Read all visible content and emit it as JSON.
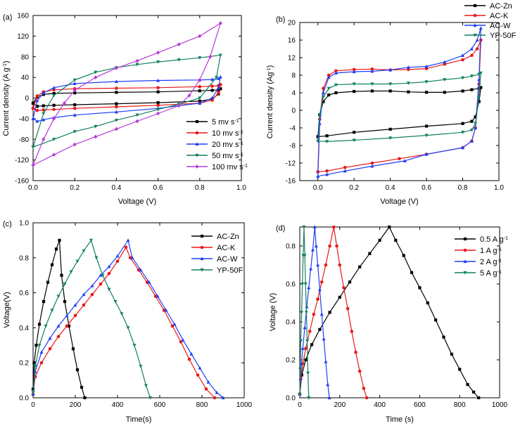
{
  "chart_data": [
    {
      "type": "line",
      "panel": "(a)",
      "xlabel": "Voltage (V)",
      "ylabel": "Current density (A g⁻¹)",
      "xlim": [
        0.0,
        1.0
      ],
      "ylim": [
        -160,
        160
      ],
      "xticks": [
        0.0,
        0.2,
        0.4,
        0.6,
        0.8,
        1.0
      ],
      "xtick_labels": [
        "0.0",
        "0.2",
        "0.4",
        "0.6",
        "0.8",
        "1.0"
      ],
      "yticks": [
        -160,
        -120,
        -80,
        -40,
        0,
        40,
        80,
        120,
        160
      ],
      "ytick_labels": [
        "-160",
        "-120",
        "-80",
        "-40",
        "0",
        "40",
        "80",
        "120",
        "160"
      ],
      "grid": false,
      "legend_position": "bottom-right",
      "series": [
        {
          "name": "5 mv s⁻¹",
          "color": "#000000",
          "marker": "square",
          "x": [
            0.0,
            0.02,
            0.05,
            0.1,
            0.2,
            0.4,
            0.6,
            0.8,
            0.86,
            0.89,
            0.9,
            0.89,
            0.86,
            0.8,
            0.6,
            0.4,
            0.2,
            0.1,
            0.05,
            0.02,
            0.0
          ],
          "y": [
            -10,
            2,
            7,
            9,
            10,
            11,
            12,
            14,
            15,
            16,
            18,
            8,
            -2,
            -6,
            -9,
            -11,
            -13,
            -14,
            -15,
            -16,
            -10
          ]
        },
        {
          "name": "10 mv s⁻¹",
          "color": "#e8191b",
          "marker": "circle",
          "x": [
            0.0,
            0.02,
            0.05,
            0.1,
            0.2,
            0.4,
            0.6,
            0.8,
            0.86,
            0.89,
            0.9,
            0.89,
            0.86,
            0.8,
            0.6,
            0.4,
            0.2,
            0.1,
            0.05,
            0.02,
            0.0
          ],
          "y": [
            -20,
            4,
            12,
            16,
            18,
            19,
            20,
            22,
            23,
            24,
            26,
            10,
            -4,
            -10,
            -14,
            -17,
            -20,
            -22,
            -23,
            -24,
            -20
          ]
        },
        {
          "name": "20 mv s⁻¹",
          "color": "#1f3ef5",
          "marker": "triangle-up",
          "x": [
            0.0,
            0.02,
            0.05,
            0.1,
            0.2,
            0.4,
            0.6,
            0.8,
            0.86,
            0.89,
            0.9,
            0.89,
            0.86,
            0.8,
            0.6,
            0.4,
            0.2,
            0.1,
            0.05,
            0.02,
            0.0
          ],
          "y": [
            -40,
            -5,
            10,
            20,
            28,
            32,
            34,
            35,
            36,
            38,
            41,
            20,
            0,
            -10,
            -20,
            -27,
            -33,
            -38,
            -42,
            -45,
            -40
          ]
        },
        {
          "name": "50 mv s⁻¹",
          "color": "#128061",
          "marker": "triangle-down",
          "x": [
            0.0,
            0.05,
            0.1,
            0.2,
            0.3,
            0.4,
            0.5,
            0.6,
            0.7,
            0.8,
            0.9,
            0.88,
            0.8,
            0.7,
            0.6,
            0.5,
            0.4,
            0.3,
            0.2,
            0.1,
            0.0
          ],
          "y": [
            -95,
            -30,
            5,
            35,
            50,
            59,
            65,
            70,
            74,
            78,
            83,
            40,
            0,
            -12,
            -22,
            -33,
            -43,
            -55,
            -65,
            -80,
            -95
          ]
        },
        {
          "name": "100 mv s⁻¹",
          "color": "#b63ad8",
          "marker": "diamond",
          "x": [
            0.0,
            0.05,
            0.1,
            0.15,
            0.2,
            0.3,
            0.4,
            0.5,
            0.6,
            0.7,
            0.8,
            0.9,
            0.85,
            0.8,
            0.75,
            0.7,
            0.6,
            0.5,
            0.4,
            0.3,
            0.2,
            0.1,
            0.0
          ],
          "y": [
            -130,
            -80,
            -40,
            -10,
            15,
            40,
            58,
            72,
            88,
            104,
            120,
            145,
            80,
            35,
            5,
            -15,
            -30,
            -45,
            -60,
            -75,
            -90,
            -110,
            -130
          ]
        }
      ]
    },
    {
      "type": "line",
      "panel": "(b)",
      "xlabel": "Voltage (V)",
      "ylabel": "Current density (Ag⁻¹)",
      "xlim": [
        -0.1,
        1.0
      ],
      "ylim": [
        -16,
        20
      ],
      "xticks": [
        0.0,
        0.2,
        0.4,
        0.6,
        0.8,
        1.0
      ],
      "xtick_labels": [
        "0.0",
        "0.2",
        "0.4",
        "0.6",
        "0.8",
        "1.0"
      ],
      "yticks": [
        -16,
        -12,
        -8,
        -4,
        0,
        4,
        8,
        12,
        16,
        20
      ],
      "ytick_labels": [
        "-16",
        "-12",
        "-8",
        "-4",
        "0",
        "4",
        "8",
        "12",
        "16",
        "20"
      ],
      "grid": false,
      "legend_position": "top-right outside",
      "series": [
        {
          "name": "AC-Zn",
          "color": "#000000",
          "marker": "square",
          "x": [
            0.0,
            0.01,
            0.03,
            0.06,
            0.1,
            0.2,
            0.3,
            0.4,
            0.5,
            0.6,
            0.7,
            0.8,
            0.85,
            0.89,
            0.9,
            0.89,
            0.87,
            0.85,
            0.8,
            0.6,
            0.4,
            0.2,
            0.05,
            0.0
          ],
          "y": [
            -6,
            -1,
            2,
            3.5,
            4,
            4.3,
            4.4,
            4.4,
            4.2,
            4.1,
            4.1,
            4.4,
            4.7,
            5,
            5.2,
            2,
            -1.5,
            -2.5,
            -3,
            -3.6,
            -4.3,
            -5,
            -5.8,
            -6
          ]
        },
        {
          "name": "AC-K",
          "color": "#e8191b",
          "marker": "circle",
          "x": [
            0.0,
            0.01,
            0.03,
            0.06,
            0.1,
            0.2,
            0.3,
            0.4,
            0.5,
            0.6,
            0.7,
            0.8,
            0.85,
            0.88,
            0.9,
            0.89,
            0.87,
            0.85,
            0.8,
            0.6,
            0.45,
            0.3,
            0.15,
            0.05,
            0.0
          ],
          "y": [
            -14,
            -2,
            5,
            8,
            9,
            9.3,
            9.4,
            9.2,
            9.3,
            9.5,
            10.5,
            11.5,
            12.5,
            14,
            16,
            6,
            -4,
            -7,
            -8.5,
            -10,
            -11,
            -12,
            -13,
            -13.8,
            -14
          ]
        },
        {
          "name": "AC-W",
          "color": "#1f3ef5",
          "marker": "triangle-up",
          "x": [
            0.0,
            0.01,
            0.03,
            0.06,
            0.1,
            0.2,
            0.3,
            0.4,
            0.5,
            0.6,
            0.7,
            0.8,
            0.85,
            0.88,
            0.9,
            0.89,
            0.87,
            0.85,
            0.8,
            0.6,
            0.48,
            0.3,
            0.15,
            0.05,
            0.0
          ],
          "y": [
            -15,
            -3,
            4,
            7.5,
            8.5,
            8.8,
            8.9,
            9.2,
            9.8,
            10,
            11,
            12.5,
            14,
            16,
            18.7,
            7,
            -4,
            -7,
            -8.5,
            -10,
            -11.5,
            -12.7,
            -13.8,
            -14.6,
            -15
          ]
        },
        {
          "name": "YP-50F",
          "color": "#128061",
          "marker": "triangle-down",
          "x": [
            0.0,
            0.01,
            0.03,
            0.06,
            0.1,
            0.2,
            0.3,
            0.4,
            0.5,
            0.6,
            0.7,
            0.8,
            0.85,
            0.89,
            0.9,
            0.89,
            0.87,
            0.85,
            0.8,
            0.6,
            0.4,
            0.2,
            0.05,
            0.0
          ],
          "y": [
            -7,
            -1,
            3,
            5,
            5.8,
            6,
            6,
            6,
            6.2,
            6.5,
            7,
            7.4,
            7.8,
            8.2,
            8.5,
            3,
            -3,
            -4.5,
            -5,
            -5.7,
            -6.3,
            -6.8,
            -7.1,
            -7
          ]
        }
      ]
    },
    {
      "type": "line",
      "panel": "(c)",
      "xlabel": "Time(s)",
      "ylabel": "Voltage(V)",
      "xlim": [
        0,
        1000
      ],
      "ylim": [
        0.0,
        1.0
      ],
      "xticks": [
        0,
        200,
        400,
        600,
        800,
        1000
      ],
      "xtick_labels": [
        "0",
        "200",
        "400",
        "600",
        "800",
        "1000"
      ],
      "yticks": [
        0.0,
        0.2,
        0.4,
        0.6,
        0.8,
        1.0
      ],
      "ytick_labels": [
        "0.0",
        "0.2",
        "0.4",
        "0.6",
        "0.8",
        "1.0"
      ],
      "grid": false,
      "legend_position": "top-right",
      "series": [
        {
          "name": "AC-Zn",
          "color": "#000000",
          "marker": "square",
          "x": [
            0,
            5,
            15,
            30,
            50,
            70,
            90,
            110,
            125,
            135,
            150,
            170,
            190,
            210,
            230,
            245
          ],
          "y": [
            0.05,
            0.2,
            0.3,
            0.42,
            0.55,
            0.66,
            0.76,
            0.85,
            0.9,
            0.7,
            0.55,
            0.41,
            0.28,
            0.16,
            0.06,
            0.0
          ]
        },
        {
          "name": "AC-K",
          "color": "#e8191b",
          "marker": "circle",
          "x": [
            0,
            10,
            40,
            80,
            120,
            160,
            200,
            240,
            280,
            320,
            360,
            400,
            440,
            460,
            500,
            540,
            580,
            620,
            660,
            700,
            740,
            780,
            820,
            860
          ],
          "y": [
            0.02,
            0.12,
            0.2,
            0.28,
            0.35,
            0.41,
            0.47,
            0.53,
            0.59,
            0.65,
            0.71,
            0.78,
            0.86,
            0.8,
            0.73,
            0.66,
            0.58,
            0.5,
            0.41,
            0.32,
            0.22,
            0.13,
            0.05,
            0.0
          ]
        },
        {
          "name": "AC-W",
          "color": "#1f3ef5",
          "marker": "triangle-up",
          "x": [
            0,
            10,
            40,
            80,
            120,
            160,
            200,
            240,
            280,
            320,
            360,
            400,
            450,
            470,
            510,
            550,
            590,
            630,
            670,
            710,
            750,
            790,
            830,
            870,
            900
          ],
          "y": [
            0.02,
            0.15,
            0.26,
            0.34,
            0.41,
            0.47,
            0.53,
            0.59,
            0.64,
            0.7,
            0.75,
            0.81,
            0.9,
            0.8,
            0.73,
            0.66,
            0.58,
            0.5,
            0.42,
            0.33,
            0.25,
            0.17,
            0.09,
            0.03,
            0.0
          ]
        },
        {
          "name": "YP-50F",
          "color": "#128061",
          "marker": "triangle-down",
          "x": [
            0,
            10,
            30,
            60,
            90,
            120,
            150,
            180,
            210,
            240,
            275,
            300,
            330,
            360,
            390,
            420,
            450,
            480,
            510,
            535,
            555
          ],
          "y": [
            0.03,
            0.18,
            0.3,
            0.41,
            0.5,
            0.58,
            0.65,
            0.72,
            0.78,
            0.84,
            0.9,
            0.8,
            0.7,
            0.62,
            0.55,
            0.48,
            0.4,
            0.3,
            0.18,
            0.07,
            0.0
          ]
        }
      ]
    },
    {
      "type": "line",
      "panel": "(d)",
      "xlabel": "Time (s)",
      "ylabel": "Voltage (V)",
      "xlim": [
        0,
        1000
      ],
      "ylim": [
        0.0,
        0.9
      ],
      "xticks": [
        0,
        200,
        400,
        600,
        800,
        1000
      ],
      "xtick_labels": [
        "0",
        "200",
        "400",
        "600",
        "800",
        "1000"
      ],
      "yticks": [
        0.0,
        0.2,
        0.4,
        0.6,
        0.8
      ],
      "ytick_labels": [
        "0.0",
        "0.2",
        "0.4",
        "0.6",
        "0.8"
      ],
      "grid": false,
      "legend_position": "top-right",
      "series": [
        {
          "name": "0.5 A g⁻¹",
          "color": "#000000",
          "marker": "square",
          "x": [
            0,
            10,
            30,
            60,
            100,
            150,
            200,
            250,
            300,
            350,
            400,
            448,
            480,
            520,
            560,
            600,
            640,
            680,
            720,
            760,
            800,
            840,
            870,
            895
          ],
          "y": [
            0.02,
            0.12,
            0.2,
            0.28,
            0.36,
            0.45,
            0.53,
            0.61,
            0.69,
            0.76,
            0.83,
            0.9,
            0.83,
            0.75,
            0.66,
            0.58,
            0.5,
            0.41,
            0.32,
            0.23,
            0.15,
            0.07,
            0.03,
            0.0
          ]
        },
        {
          "name": "1 A g⁻¹",
          "color": "#e8191b",
          "marker": "circle",
          "x": [
            0,
            5,
            15,
            30,
            50,
            70,
            90,
            110,
            130,
            150,
            170,
            185,
            200,
            220,
            240,
            260,
            280,
            300,
            320,
            335
          ],
          "y": [
            0.02,
            0.1,
            0.18,
            0.26,
            0.35,
            0.44,
            0.52,
            0.61,
            0.7,
            0.8,
            0.9,
            0.8,
            0.7,
            0.58,
            0.47,
            0.35,
            0.24,
            0.14,
            0.05,
            0.0
          ]
        },
        {
          "name": "2 A g⁻¹",
          "color": "#1f3ef5",
          "marker": "triangle-up",
          "x": [
            0,
            3,
            8,
            15,
            25,
            35,
            45,
            55,
            65,
            75,
            82,
            90,
            100,
            110,
            120,
            130,
            140,
            148
          ],
          "y": [
            0.02,
            0.1,
            0.18,
            0.26,
            0.37,
            0.48,
            0.58,
            0.68,
            0.78,
            0.9,
            0.8,
            0.7,
            0.57,
            0.44,
            0.31,
            0.19,
            0.07,
            0.0
          ]
        },
        {
          "name": "5 A g⁻¹",
          "color": "#128061",
          "marker": "triangle-down",
          "x": [
            0,
            2,
            5,
            9,
            13,
            17,
            21,
            25,
            29,
            33,
            37,
            41,
            45
          ],
          "y": [
            0.02,
            0.15,
            0.3,
            0.45,
            0.6,
            0.75,
            0.9,
            0.75,
            0.6,
            0.45,
            0.3,
            0.13,
            0.0
          ]
        }
      ]
    }
  ]
}
